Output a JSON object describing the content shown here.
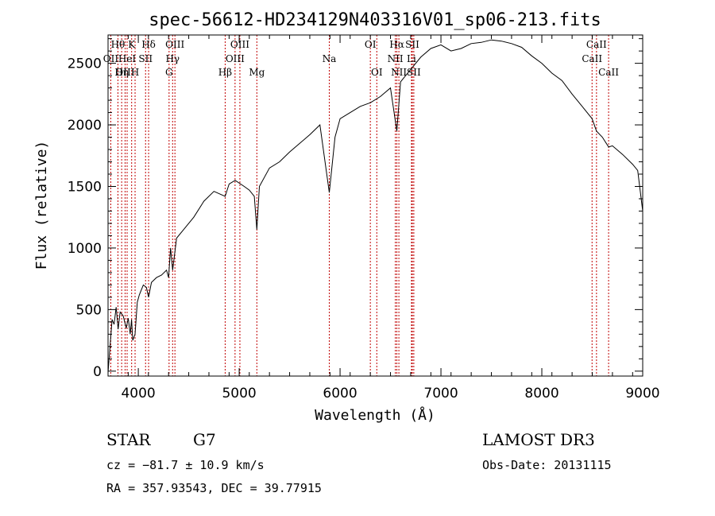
{
  "chart_data": {
    "type": "line",
    "title": "spec-56612-HD234129N403316V01_sp06-213.fits",
    "xlabel": "Wavelength (Å)",
    "ylabel": "Flux (relative)",
    "xlim": [
      3700,
      9000
    ],
    "ylim": [
      -40,
      2730
    ],
    "x_ticks": [
      4000,
      5000,
      6000,
      7000,
      8000,
      9000
    ],
    "y_ticks": [
      0,
      500,
      1000,
      1500,
      2000,
      2500
    ],
    "series": [
      {
        "name": "flux",
        "x": [
          3700,
          3720,
          3740,
          3760,
          3780,
          3800,
          3820,
          3850,
          3880,
          3900,
          3920,
          3933,
          3945,
          3968,
          3990,
          4010,
          4050,
          4080,
          4102,
          4130,
          4180,
          4230,
          4280,
          4300,
          4320,
          4340,
          4380,
          4450,
          4550,
          4650,
          4750,
          4861,
          4900,
          4960,
          5050,
          5100,
          5150,
          5175,
          5200,
          5300,
          5400,
          5500,
          5600,
          5700,
          5800,
          5893,
          5950,
          6000,
          6100,
          6200,
          6300,
          6400,
          6500,
          6563,
          6600,
          6700,
          6800,
          6900,
          7000,
          7100,
          7200,
          7300,
          7400,
          7500,
          7600,
          7700,
          7800,
          7900,
          8000,
          8100,
          8200,
          8300,
          8400,
          8498,
          8542,
          8600,
          8662,
          8700,
          8800,
          8900,
          8950,
          9000
        ],
        "y": [
          -10,
          200,
          420,
          380,
          520,
          340,
          480,
          450,
          350,
          430,
          300,
          420,
          250,
          300,
          560,
          620,
          700,
          680,
          600,
          720,
          760,
          780,
          820,
          760,
          1000,
          820,
          1080,
          1150,
          1250,
          1380,
          1460,
          1420,
          1520,
          1550,
          1500,
          1470,
          1420,
          1150,
          1500,
          1650,
          1700,
          1780,
          1850,
          1920,
          2000,
          1450,
          1900,
          2050,
          2100,
          2150,
          2180,
          2230,
          2300,
          1950,
          2350,
          2450,
          2550,
          2620,
          2650,
          2600,
          2620,
          2660,
          2670,
          2690,
          2680,
          2660,
          2630,
          2560,
          2500,
          2420,
          2360,
          2250,
          2150,
          2050,
          1950,
          1900,
          1820,
          1830,
          1760,
          1680,
          1630,
          1300
        ]
      }
    ],
    "line_markers": [
      {
        "name": "Hθ",
        "wavelength": 3798,
        "row": 0
      },
      {
        "name": "OII",
        "wavelength": 3727,
        "row": 1
      },
      {
        "name": "OIII",
        "wavelength": 3869,
        "row": 2
      },
      {
        "name": "K",
        "wavelength": 3934,
        "row": 0
      },
      {
        "name": "HeI",
        "wavelength": 3889,
        "row": 1
      },
      {
        "name": "Hη",
        "wavelength": 3835,
        "row": 2
      },
      {
        "name": "H",
        "wavelength": 3968,
        "row": 2
      },
      {
        "name": "Hδ",
        "wavelength": 4102,
        "row": 0
      },
      {
        "name": "SII",
        "wavelength": 4072,
        "row": 1
      },
      {
        "name": "OIII",
        "wavelength": 4363,
        "row": 0
      },
      {
        "name": "Hγ",
        "wavelength": 4340,
        "row": 1
      },
      {
        "name": "G",
        "wavelength": 4305,
        "row": 2
      },
      {
        "name": "OIII",
        "wavelength": 5007,
        "row": 0
      },
      {
        "name": "OIII",
        "wavelength": 4959,
        "row": 1
      },
      {
        "name": "Hβ",
        "wavelength": 4861,
        "row": 2
      },
      {
        "name": "Mg",
        "wavelength": 5175,
        "row": 2
      },
      {
        "name": "Na",
        "wavelength": 5893,
        "row": 1
      },
      {
        "name": "OI",
        "wavelength": 6300,
        "row": 0
      },
      {
        "name": "OI",
        "wavelength": 6364,
        "row": 2
      },
      {
        "name": "Hα",
        "wavelength": 6563,
        "row": 0
      },
      {
        "name": "SII",
        "wavelength": 6716,
        "row": 0
      },
      {
        "name": "NII",
        "wavelength": 6548,
        "row": 1
      },
      {
        "name": "Li",
        "wavelength": 6708,
        "row": 1
      },
      {
        "name": "NII",
        "wavelength": 6583,
        "row": 2
      },
      {
        "name": "SII",
        "wavelength": 6731,
        "row": 2
      },
      {
        "name": "CaII",
        "wavelength": 8542,
        "row": 0
      },
      {
        "name": "CaII",
        "wavelength": 8498,
        "row": 1
      },
      {
        "name": "CaII",
        "wavelength": 8662,
        "row": 2
      }
    ]
  },
  "info": {
    "class": "STAR",
    "subclass": "G7",
    "cz": "cz = −81.7 ± 10.9 km/s",
    "coords": "RA = 357.93543, DEC =  39.77915",
    "survey": "LAMOST DR3",
    "obs_date": "Obs-Date: 20131115"
  },
  "colors": {
    "spectrum": "#000000",
    "marker": "#c00000",
    "axis": "#000000"
  }
}
